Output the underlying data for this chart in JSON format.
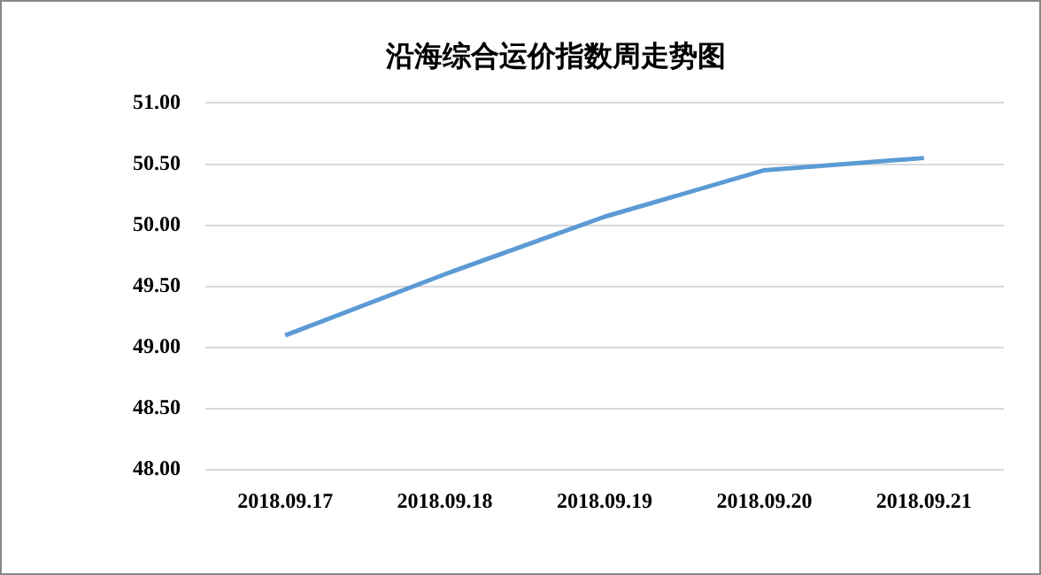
{
  "chart_data": {
    "type": "line",
    "title": "沿海综合运价指数周走势图",
    "categories": [
      "2018.09.17",
      "2018.09.18",
      "2018.09.19",
      "2018.09.20",
      "2018.09.21"
    ],
    "series": [
      {
        "color": "#5b9bd5",
        "values": [
          49.1,
          49.6,
          50.07,
          50.45,
          50.55
        ]
      }
    ],
    "ylim": [
      48,
      51
    ],
    "yticks": [
      {
        "value": 48,
        "label": "48.00"
      },
      {
        "value": 48.5,
        "label": "48.50"
      },
      {
        "value": 49,
        "label": "49.00"
      },
      {
        "value": 49.5,
        "label": "49.50"
      },
      {
        "value": 50,
        "label": "50.00"
      },
      {
        "value": 50.5,
        "label": "50.50"
      },
      {
        "value": 51,
        "label": "51.00"
      }
    ],
    "grid": "y",
    "legend": false,
    "marker": "none",
    "line_style": "solid"
  }
}
